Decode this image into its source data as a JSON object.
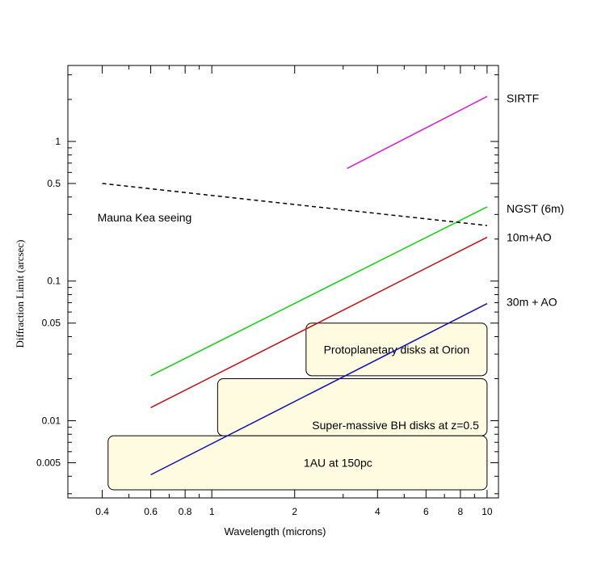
{
  "chart_data": {
    "type": "line",
    "title": "",
    "xlabel": "Wavelength (microns)",
    "ylabel": "Diffraction Limit (arcsec)",
    "xscale": "log",
    "yscale": "log",
    "xlim": [
      0.3,
      11
    ],
    "ylim": [
      0.0028,
      3.5
    ],
    "grid": false,
    "xticks": [
      {
        "value": 0.4,
        "label": "0.4"
      },
      {
        "value": 0.6,
        "label": "0.6"
      },
      {
        "value": 0.8,
        "label": "0.8"
      },
      {
        "value": 1,
        "label": "1"
      },
      {
        "value": 2,
        "label": "2"
      },
      {
        "value": 4,
        "label": "4"
      },
      {
        "value": 6,
        "label": "6"
      },
      {
        "value": 8,
        "label": "8"
      },
      {
        "value": 10,
        "label": "10"
      }
    ],
    "yticks": [
      {
        "value": 0.005,
        "label": "0.005"
      },
      {
        "value": 0.01,
        "label": "0.01"
      },
      {
        "value": 0.05,
        "label": "0.05"
      },
      {
        "value": 0.1,
        "label": "0.1"
      },
      {
        "value": 0.5,
        "label": "0.5"
      },
      {
        "value": 1,
        "label": "1"
      }
    ],
    "series": [
      {
        "name": "SIRTF",
        "color": "#d020d0",
        "style": "solid",
        "x": [
          3.1,
          10
        ],
        "y": [
          0.64,
          2.1
        ]
      },
      {
        "name": "NGST (6m)",
        "color": "#10d010",
        "style": "solid",
        "x": [
          0.6,
          10
        ],
        "y": [
          0.021,
          0.34
        ]
      },
      {
        "name": "10m+AO",
        "color": "#c01010",
        "style": "solid",
        "x": [
          0.6,
          10
        ],
        "y": [
          0.0124,
          0.206
        ]
      },
      {
        "name": "30m + AO",
        "color": "#1010b0",
        "style": "solid",
        "x": [
          0.6,
          10
        ],
        "y": [
          0.0041,
          0.069
        ]
      },
      {
        "name": "Mauna Kea seeing",
        "color": "#000000",
        "style": "dashed",
        "x": [
          0.4,
          10
        ],
        "y": [
          0.5,
          0.25
        ]
      }
    ],
    "regions": [
      {
        "label": "Protoplanetary disks at Orion",
        "x": [
          2.2,
          10
        ],
        "y": [
          0.021,
          0.05
        ]
      },
      {
        "label": "Super-massive BH disks at z=0.5",
        "x": [
          1.05,
          10
        ],
        "y": [
          0.0078,
          0.02
        ]
      },
      {
        "label": "1AU at 150pc",
        "x": [
          0.42,
          10
        ],
        "y": [
          0.0032,
          0.0078
        ]
      }
    ],
    "region_fill": "#fffbe0"
  }
}
